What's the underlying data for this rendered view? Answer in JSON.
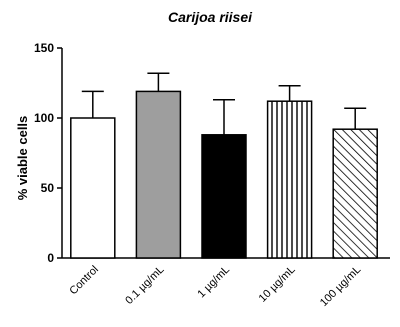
{
  "chart_data": {
    "type": "bar",
    "title": "Carijoa riisei",
    "xlabel": "",
    "ylabel": "% viable cells",
    "ylim": [
      0,
      150
    ],
    "yticks": [
      0,
      50,
      100,
      150
    ],
    "grid": false,
    "legend": "none",
    "categories": [
      "Control",
      "0.1 µg/mL",
      "1 µg/mL",
      "10 µg/mL",
      "100 µg/mL"
    ],
    "values": [
      100,
      119,
      88,
      112,
      92
    ],
    "error_upper": [
      19,
      13,
      25,
      11,
      15
    ],
    "bar_fills": [
      "white",
      "gray",
      "black",
      "vertical-stripes",
      "diagonal-hatch"
    ],
    "colors": {
      "axis": "#000000",
      "gray_fill": "#9e9e9e",
      "black_fill": "#000000",
      "white_fill": "#ffffff"
    }
  }
}
